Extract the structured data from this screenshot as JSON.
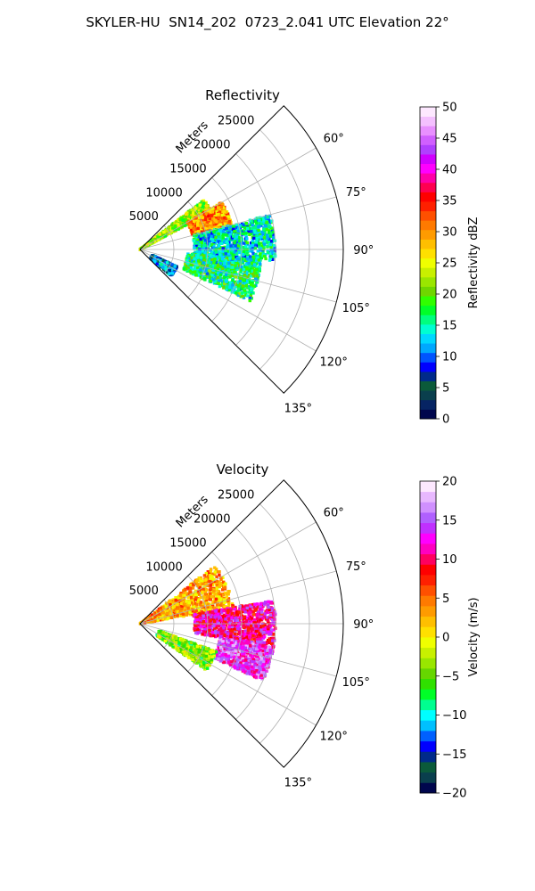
{
  "title": "SKYLER-HU  SN14_202  0723_2.041 UTC Elevation 22°",
  "colors": {
    "reflectivity_cmap": [
      "#00064d",
      "#062463",
      "#0a3f4d",
      "#0b5a3a",
      "#002a8a",
      "#0000ff",
      "#0054ff",
      "#00a8ff",
      "#00d8ff",
      "#00ffd2",
      "#00ff7f",
      "#00ff28",
      "#30ff00",
      "#6fd600",
      "#9ae600",
      "#c8f000",
      "#efff00",
      "#ffe000",
      "#ffbf00",
      "#ff9b00",
      "#ff7a00",
      "#ff5000",
      "#ff2000",
      "#ff0000",
      "#ff0050",
      "#ff00a8",
      "#ff00ff",
      "#d000ff",
      "#b040ff",
      "#d060ff",
      "#e890ff",
      "#f4c0ff",
      "#fde8ff"
    ],
    "velocity_cmap": [
      "#00064d",
      "#0a3f4d",
      "#0b5a3a",
      "#002a8a",
      "#0000ff",
      "#0060ff",
      "#00c0ff",
      "#00ffff",
      "#00ff90",
      "#00ff28",
      "#30e000",
      "#66d600",
      "#99e600",
      "#c8f000",
      "#efff00",
      "#ffe000",
      "#ffbf00",
      "#ff9b00",
      "#ff7a00",
      "#ff5000",
      "#ff2000",
      "#ff0000",
      "#ff0060",
      "#ff00c0",
      "#ff00ff",
      "#c030ff",
      "#b060ff",
      "#d090ff",
      "#e8b8ff",
      "#fde8ff"
    ]
  },
  "chart_data": [
    {
      "type": "heatmap",
      "subtype": "polar-sector",
      "title": "Reflectivity",
      "radial_label": "Meters",
      "r_ticks": [
        5000,
        10000,
        15000,
        20000,
        25000
      ],
      "r_range": [
        0,
        30000
      ],
      "theta_ticks": [
        "60°",
        "75°",
        "90°",
        "105°",
        "120°",
        "135°"
      ],
      "theta_range_deg": [
        45,
        135
      ],
      "grid": true,
      "colorbar": {
        "label": "Reflectivity dBZ",
        "min": 0,
        "max": 50,
        "ticks": [
          "0",
          "5",
          "10",
          "15",
          "20",
          "25",
          "30",
          "35",
          "40",
          "45",
          "50"
        ]
      },
      "echo_regions": [
        {
          "theta": [
            52,
            62
          ],
          "r": [
            0,
            12000
          ],
          "value": 22
        },
        {
          "theta": [
            60,
            75
          ],
          "r": [
            8000,
            14000
          ],
          "value": 30
        },
        {
          "theta": [
            75,
            95
          ],
          "r": [
            8000,
            20000
          ],
          "value": 14
        },
        {
          "theta": [
            95,
            115
          ],
          "r": [
            7000,
            18000
          ],
          "value": 16
        },
        {
          "theta": [
            115,
            130
          ],
          "r": [
            2000,
            6000
          ],
          "value": 10
        }
      ]
    },
    {
      "type": "heatmap",
      "subtype": "polar-sector",
      "title": "Velocity",
      "radial_label": "Meters",
      "r_ticks": [
        5000,
        10000,
        15000,
        20000,
        25000
      ],
      "r_range": [
        0,
        30000
      ],
      "theta_ticks": [
        "60°",
        "75°",
        "90°",
        "105°",
        "120°",
        "135°"
      ],
      "theta_range_deg": [
        45,
        135
      ],
      "grid": true,
      "colorbar": {
        "label": "Velocity (m/s)",
        "min": -20,
        "max": 20,
        "ticks": [
          "−20",
          "−15",
          "−10",
          "−5",
          "0",
          "5",
          "10",
          "15",
          "20"
        ]
      },
      "echo_regions": [
        {
          "theta": [
            52,
            80
          ],
          "r": [
            0,
            14000
          ],
          "value": 3
        },
        {
          "theta": [
            80,
            100
          ],
          "r": [
            8000,
            20000
          ],
          "value": 11
        },
        {
          "theta": [
            100,
            115
          ],
          "r": [
            12000,
            20000
          ],
          "value": 14
        },
        {
          "theta": [
            110,
            125
          ],
          "r": [
            3000,
            12000
          ],
          "value": -4
        }
      ]
    }
  ]
}
